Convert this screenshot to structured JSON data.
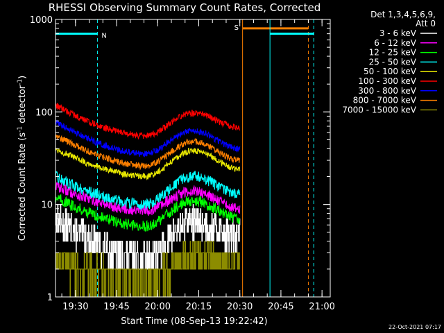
{
  "chart_data": {
    "type": "line",
    "title": "RHESSI Observing Summary Count Rates, Corrected",
    "xlabel": "Start Time (08-Sep-13 19:22:42)",
    "ylabel_main": "Corrected Count Rate (s",
    "ylabel_sup1": "-1",
    "ylabel_mid": " detector",
    "ylabel_sup2": "-1",
    "ylabel_end": ")",
    "y_scale": "log",
    "ylim": [
      1,
      1000
    ],
    "xlim": [
      "19:22:42",
      "21:03:00"
    ],
    "x_ticks": [
      "19:30",
      "19:45",
      "20:00",
      "20:15",
      "20:30",
      "20:45",
      "21:00"
    ],
    "y_ticks": [
      "1",
      "10",
      "100",
      "1000"
    ],
    "legend_header": [
      "Det 1,3,4,5,6,9,",
      "Att 0"
    ],
    "legend_placement": "right",
    "data_end_time": "20:30",
    "series": [
      {
        "name": "3 - 6 keV",
        "color": "#ffffff",
        "profile": {
          "start": 7,
          "trough": 2.6,
          "peak": 6.5,
          "end": 4.5
        }
      },
      {
        "name": "6 - 12 keV",
        "color": "#ff00ff",
        "profile": {
          "start": 16,
          "trough": 8.5,
          "peak": 14,
          "end": 9
        }
      },
      {
        "name": "12 - 25 keV",
        "color": "#00ff00",
        "profile": {
          "start": 12,
          "trough": 5.8,
          "peak": 11,
          "end": 7
        }
      },
      {
        "name": "25 - 50 keV",
        "color": "#00ffff",
        "profile": {
          "start": 20,
          "trough": 10,
          "peak": 20,
          "end": 13
        }
      },
      {
        "name": "50 - 100 keV",
        "color": "#e8e800",
        "profile": {
          "start": 40,
          "trough": 20,
          "peak": 38,
          "end": 24
        }
      },
      {
        "name": "100 - 300 keV",
        "color": "#ff0000",
        "profile": {
          "start": 118,
          "trough": 55,
          "peak": 97,
          "end": 68
        }
      },
      {
        "name": "300 - 800 keV",
        "color": "#0000ff",
        "profile": {
          "start": 78,
          "trough": 35,
          "peak": 63,
          "end": 40
        }
      },
      {
        "name": "800 - 7000 keV",
        "color": "#ff8000",
        "profile": {
          "start": 56,
          "trough": 26,
          "peak": 48,
          "end": 30
        }
      },
      {
        "name": "7000 - 15000 keV",
        "color": "#8c8c00",
        "profile": {
          "start": 2.5,
          "trough": 1.5,
          "peak": 2.8,
          "end": 2.2
        }
      }
    ],
    "annotations": [
      {
        "label": "N",
        "color": "#00ffff",
        "bar_start": "19:22:42",
        "bar_end": "19:38",
        "y": 700,
        "dashed_line_x": "19:38"
      },
      {
        "label": "S",
        "color": "#ff8000",
        "bar_start": "20:31",
        "bar_end": "20:55",
        "y": 800,
        "solid_line_x": "20:31",
        "dashed_line_x": "20:55"
      },
      {
        "label": "",
        "color": "#00ffff",
        "bar_start": "20:41",
        "bar_end": "20:57",
        "y": 700,
        "solid_line_x": "20:41",
        "dashed_line_x": "20:57"
      }
    ]
  },
  "footer": {
    "date": "22-Oct-2021 07:17"
  }
}
